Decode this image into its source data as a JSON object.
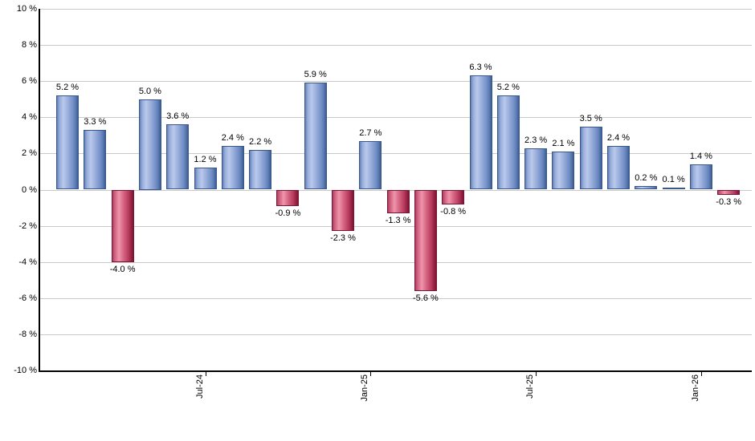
{
  "chart_data": {
    "type": "bar",
    "title": "",
    "description": "Monthly return percentages, blue bars positive, red bars negative",
    "values": [
      5.2,
      3.3,
      -4.0,
      5.0,
      3.6,
      1.2,
      2.4,
      2.2,
      -0.9,
      5.9,
      -2.3,
      2.7,
      -1.3,
      -5.6,
      -0.8,
      6.3,
      5.2,
      2.3,
      2.1,
      3.5,
      2.4,
      0.2,
      0.1,
      1.4,
      -0.3
    ],
    "bar_labels": [
      "5.2 %",
      "3.3 %",
      "-4.0 %",
      "5.0 %",
      "3.6 %",
      "1.2 %",
      "2.4 %",
      "2.2 %",
      "-0.9 %",
      "5.9 %",
      "-2.3 %",
      "2.7 %",
      "-1.3 %",
      "-5.6 %",
      "-0.8 %",
      "6.3 %",
      "5.2 %",
      "2.3 %",
      "2.1 %",
      "3.5 %",
      "2.4 %",
      "0.2 %",
      "0.1 %",
      "1.4 %",
      "-0.3 %"
    ],
    "y_axis": {
      "min": -10,
      "max": 10,
      "step": 2,
      "tick_labels": [
        "10 %",
        "8 %",
        "6 %",
        "4 %",
        "2 %",
        "0 %",
        "-2 %",
        "-4 %",
        "-6 %",
        "-8 %",
        "-10 %"
      ],
      "tick_values": [
        10,
        8,
        6,
        4,
        2,
        0,
        -2,
        -4,
        -6,
        -8,
        -10
      ]
    },
    "x_axis": {
      "tick_labels": [
        "Jul-24",
        "Jan-25",
        "Jul-25",
        "Jan-26"
      ],
      "tick_bar_indices": [
        5,
        11,
        17,
        23
      ]
    },
    "legend": "none",
    "grid": "horizontal",
    "colors": {
      "positive_bar": "#8aa3d4",
      "negative_bar": "#cc5576",
      "gridline": "#c9c9c9",
      "axis": "#000000",
      "label_text": "#000000",
      "background": "#ffffff"
    }
  }
}
